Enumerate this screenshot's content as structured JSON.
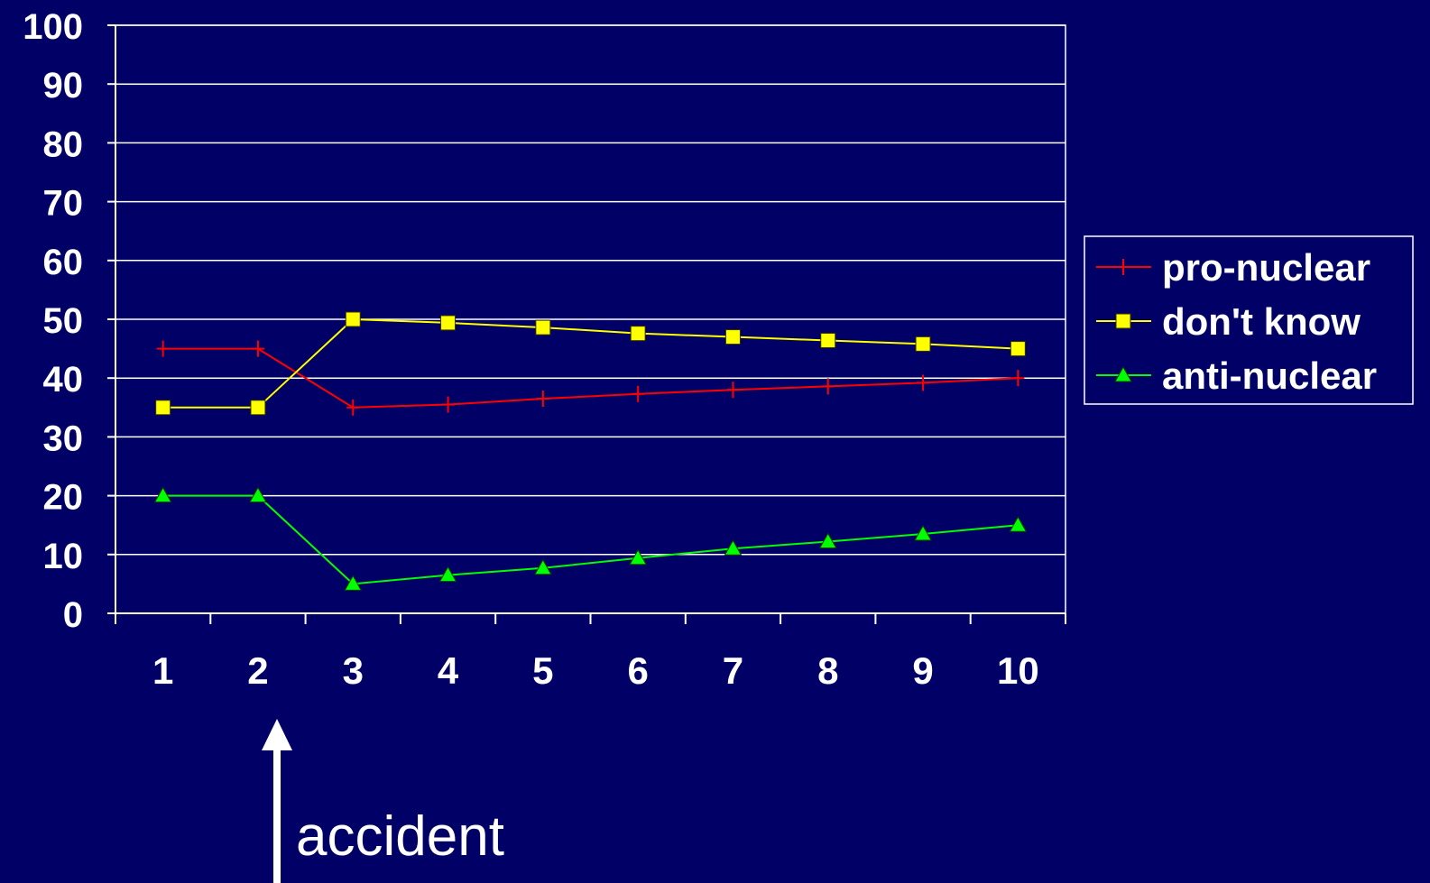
{
  "chart_data": {
    "type": "line",
    "x": [
      1,
      2,
      3,
      4,
      5,
      6,
      7,
      8,
      9,
      10
    ],
    "x_tick_labels": [
      "1",
      "2",
      "3",
      "4",
      "5",
      "6",
      "7",
      "8",
      "9",
      "10"
    ],
    "y_tick_labels": [
      "0",
      "10",
      "20",
      "30",
      "40",
      "50",
      "60",
      "70",
      "80",
      "90",
      "100"
    ],
    "ylim": [
      0,
      100
    ],
    "grid": true,
    "legend_position": "right",
    "series": [
      {
        "name": "pro-nuclear",
        "marker": "plus",
        "color": "#ff0000",
        "values": [
          45,
          45,
          35,
          35.5,
          36.5,
          37.3,
          38,
          38.6,
          39.2,
          40
        ]
      },
      {
        "name": "don't know",
        "marker": "square",
        "color": "#ffff00",
        "values": [
          35,
          35,
          50,
          49.4,
          48.6,
          47.6,
          47,
          46.4,
          45.8,
          45
        ]
      },
      {
        "name": "anti-nuclear",
        "marker": "triangle",
        "color": "#00ff00",
        "values": [
          20,
          20,
          5,
          6.5,
          7.7,
          9.4,
          11,
          12.2,
          13.5,
          15
        ]
      }
    ],
    "annotation": {
      "text": "accident",
      "x": 2.2
    }
  },
  "colors": {
    "background": "#000066",
    "axis": "#ffffff",
    "grid": "#ffffff"
  }
}
